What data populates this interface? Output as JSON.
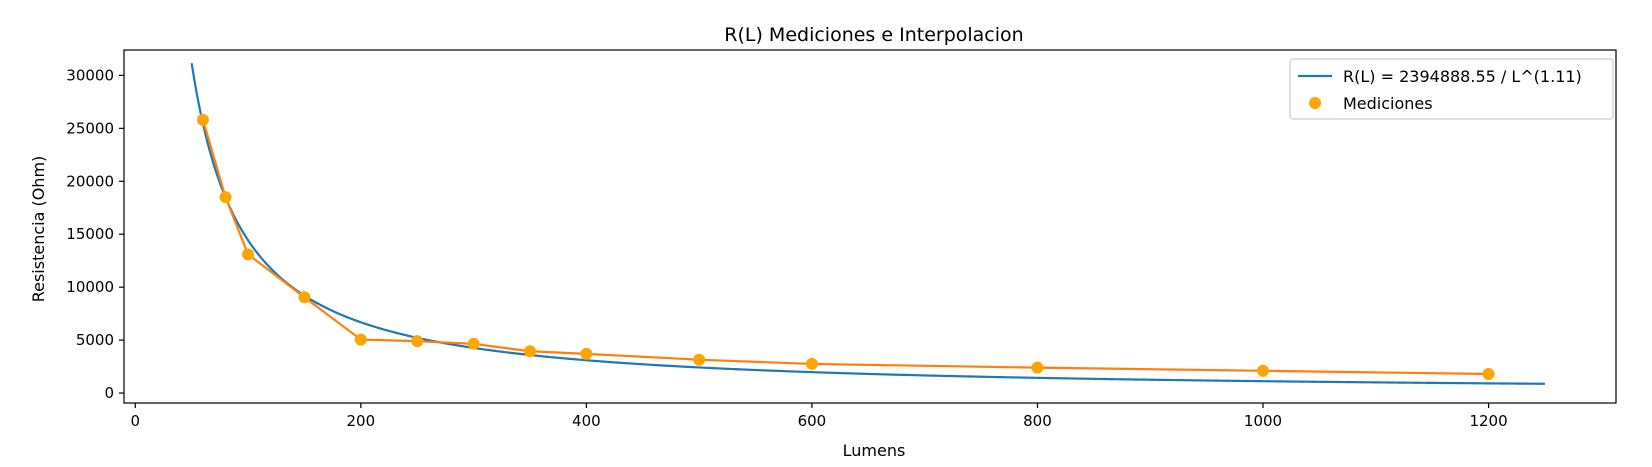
{
  "chart_data": {
    "type": "line",
    "title": "R(L) Mediciones e Interpolacion",
    "xlabel": "Lumens",
    "ylabel": "Resistencia (Ohm)",
    "xlim": [
      -10,
      1313
    ],
    "ylim": [
      -940,
      32400
    ],
    "x_ticks": [
      0,
      200,
      400,
      600,
      800,
      1000,
      1200
    ],
    "y_ticks": [
      0,
      5000,
      10000,
      15000,
      20000,
      25000,
      30000
    ],
    "grid": false,
    "legend_position": "top-right",
    "series": [
      {
        "name": "R(L) = 2394888.55 / L^(1.11)",
        "kind": "fit",
        "color": "#1f77b4",
        "coefficient": 2394888.55,
        "exponent": 1.11,
        "x_range": [
          50,
          1250
        ]
      },
      {
        "name": "Mediciones",
        "kind": "measurements",
        "color": "#ffa500",
        "line_color": "#ff7f0e",
        "x": [
          60,
          80,
          100,
          150,
          200,
          250,
          300,
          350,
          400,
          500,
          600,
          800,
          1000,
          1200
        ],
        "y": [
          25800,
          18500,
          13100,
          9050,
          5050,
          4900,
          4650,
          3950,
          3700,
          3150,
          2750,
          2400,
          2100,
          1800
        ]
      }
    ]
  }
}
